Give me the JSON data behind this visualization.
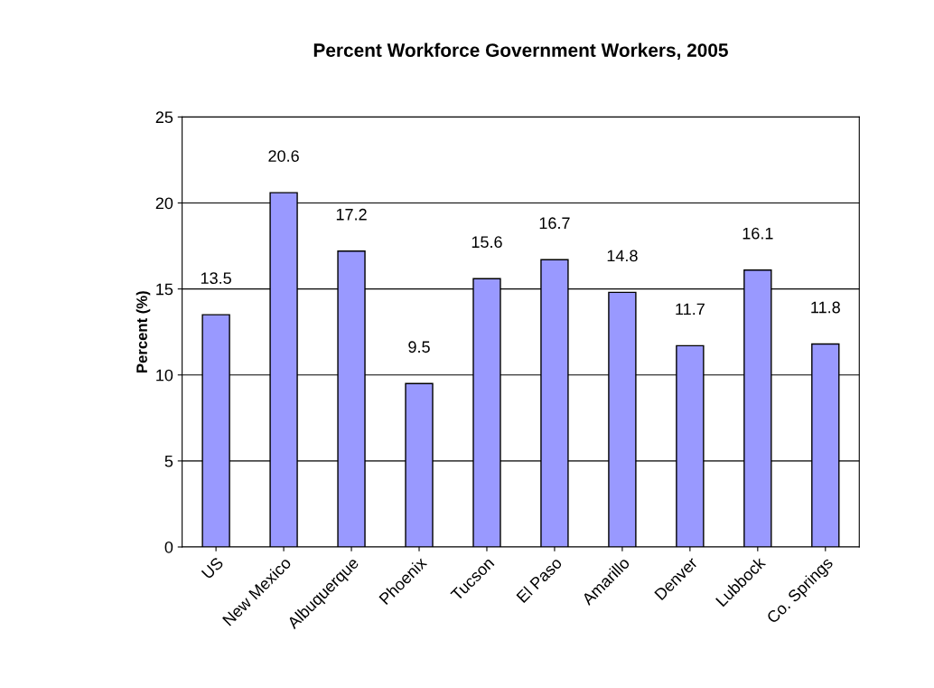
{
  "chart_data": {
    "type": "bar",
    "title": "Percent Workforce Government Workers, 2005",
    "ylabel": "Percent (%)",
    "categories": [
      "US",
      "New Mexico",
      "Albuquerque",
      "Phoenix",
      "Tucson",
      "El Paso",
      "Amarillo",
      "Denver",
      "Lubbock",
      "Co. Springs"
    ],
    "values": [
      13.5,
      20.6,
      17.2,
      9.5,
      15.6,
      16.7,
      14.8,
      11.7,
      16.1,
      11.8
    ],
    "color": "#9999ff",
    "ylim": [
      0,
      25
    ],
    "yticks": [
      0,
      5,
      10,
      15,
      20,
      25
    ],
    "grid": "y",
    "data_labels": true
  }
}
